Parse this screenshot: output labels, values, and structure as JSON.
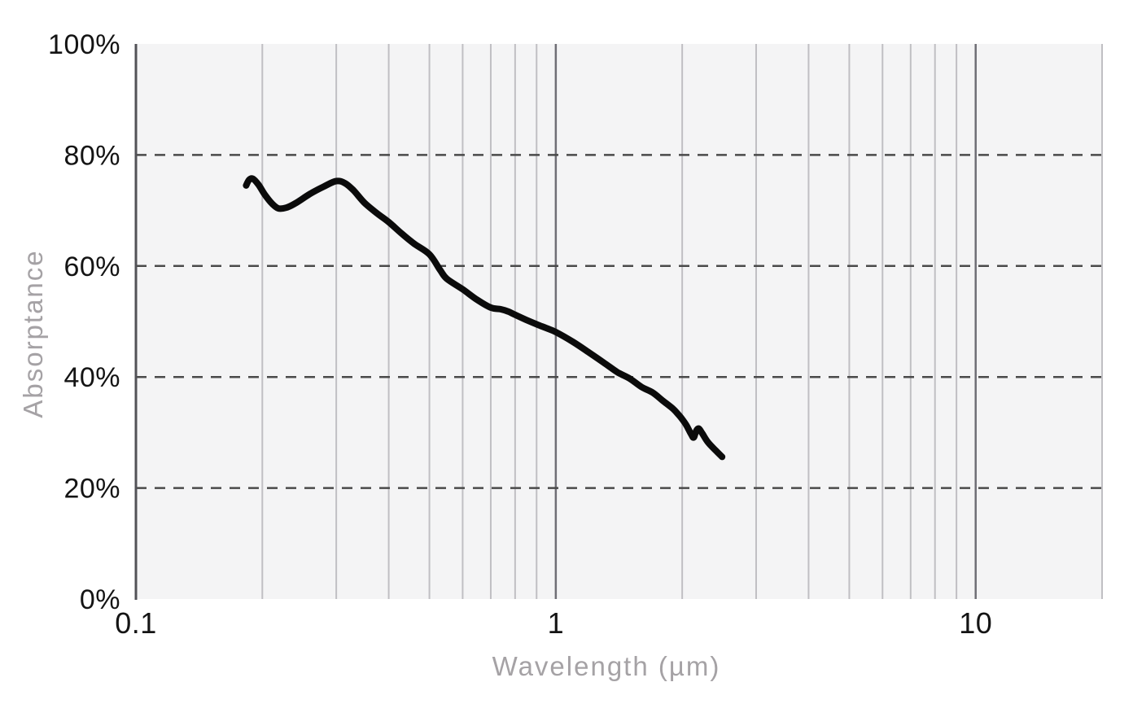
{
  "chart_data": {
    "type": "line",
    "title": "",
    "xlabel": "Wavelength (µm)",
    "ylabel": "Absorptance",
    "x_scale": "log",
    "xlim": [
      0.1,
      20
    ],
    "ylim": [
      0,
      100
    ],
    "x_ticks": [
      {
        "value": 0.1,
        "label": "0.1"
      },
      {
        "value": 1,
        "label": "1"
      },
      {
        "value": 10,
        "label": "10"
      }
    ],
    "y_ticks": [
      {
        "value": 0,
        "label": "0%"
      },
      {
        "value": 20,
        "label": "20%"
      },
      {
        "value": 40,
        "label": "40%"
      },
      {
        "value": 60,
        "label": "60%"
      },
      {
        "value": 80,
        "label": "80%"
      },
      {
        "value": 100,
        "label": "100%"
      }
    ],
    "grid": {
      "v_minor": [
        0.2,
        0.3,
        0.4,
        0.5,
        0.6,
        0.7,
        0.8,
        0.9,
        2,
        3,
        4,
        5,
        6,
        7,
        8,
        9,
        20
      ],
      "v_major": [
        1,
        10
      ],
      "h_dashed": [
        20,
        40,
        60,
        80
      ]
    },
    "legend": null,
    "series": [
      {
        "name": "absorptance",
        "color": "#0b0b0b",
        "stroke_width": 8,
        "points": [
          [
            0.183,
            74.5
          ],
          [
            0.186,
            75.5
          ],
          [
            0.19,
            75.7
          ],
          [
            0.196,
            74.6
          ],
          [
            0.203,
            72.8
          ],
          [
            0.21,
            71.4
          ],
          [
            0.218,
            70.4
          ],
          [
            0.228,
            70.5
          ],
          [
            0.24,
            71.3
          ],
          [
            0.26,
            73.0
          ],
          [
            0.28,
            74.3
          ],
          [
            0.3,
            75.3
          ],
          [
            0.315,
            74.9
          ],
          [
            0.33,
            73.6
          ],
          [
            0.35,
            71.4
          ],
          [
            0.375,
            69.5
          ],
          [
            0.4,
            67.9
          ],
          [
            0.43,
            65.8
          ],
          [
            0.46,
            64.0
          ],
          [
            0.5,
            62.1
          ],
          [
            0.53,
            59.3
          ],
          [
            0.55,
            57.7
          ],
          [
            0.6,
            55.8
          ],
          [
            0.65,
            53.9
          ],
          [
            0.7,
            52.5
          ],
          [
            0.74,
            52.2
          ],
          [
            0.77,
            51.8
          ],
          [
            0.8,
            51.2
          ],
          [
            0.85,
            50.3
          ],
          [
            0.9,
            49.5
          ],
          [
            0.95,
            48.8
          ],
          [
            1.0,
            48.1
          ],
          [
            1.1,
            46.3
          ],
          [
            1.2,
            44.4
          ],
          [
            1.3,
            42.6
          ],
          [
            1.4,
            40.9
          ],
          [
            1.5,
            39.7
          ],
          [
            1.6,
            38.2
          ],
          [
            1.7,
            37.2
          ],
          [
            1.8,
            35.7
          ],
          [
            1.9,
            34.3
          ],
          [
            1.95,
            33.4
          ],
          [
            2.0,
            32.4
          ],
          [
            2.05,
            31.2
          ],
          [
            2.1,
            29.7
          ],
          [
            2.13,
            29.1
          ],
          [
            2.16,
            30.3
          ],
          [
            2.19,
            30.7
          ],
          [
            2.23,
            29.9
          ],
          [
            2.3,
            28.3
          ],
          [
            2.4,
            26.8
          ],
          [
            2.49,
            25.6
          ]
        ]
      }
    ],
    "colors": {
      "page_bg": "#ffffff",
      "plot_bg": "#f4f4f5",
      "grid_minor": "#c0bfc3",
      "grid_major": "#6f6e75",
      "axis_line": "#525257",
      "grid_dashed": "#4a4a4a",
      "tick_text": "#141414",
      "axis_title_text": "#a5a2a5"
    }
  }
}
